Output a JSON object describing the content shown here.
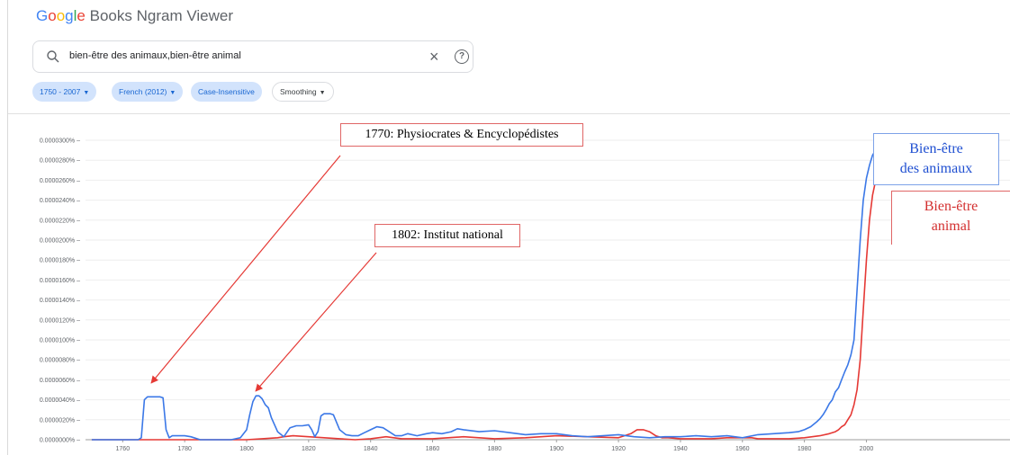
{
  "app": {
    "logo": "Google",
    "title": "Books Ngram Viewer"
  },
  "search": {
    "value": "bien-être des animaux,bien-être animal",
    "clear_icon": "close-icon",
    "help_icon": "help-circle-icon"
  },
  "filters": {
    "years": "1750 - 2007",
    "corpus": "French (2012)",
    "case": "Case-Insensitive",
    "smoothing": "Smoothing"
  },
  "colors": {
    "blue": "#3b78e7",
    "red": "#e53935",
    "chip_bg": "#d2e3fc",
    "chip_text": "#1967d2"
  },
  "annotations": [
    {
      "text": "1770: Physiocrates & Encyclopédistes"
    },
    {
      "text": "1802: Institut national"
    }
  ],
  "labels": {
    "blue": [
      "Bien-être",
      "des animaux"
    ],
    "red": [
      "Bien-être",
      "animal"
    ]
  },
  "chart_data": {
    "type": "line",
    "xlim": [
      1748,
      2008
    ],
    "ylim": [
      0,
      3e-05
    ],
    "y_ticks": [
      "0.0000000%",
      "0.0000020%",
      "0.0000040%",
      "0.0000060%",
      "0.0000080%",
      "0.0000100%",
      "0.0000120%",
      "0.0000140%",
      "0.0000160%",
      "0.0000180%",
      "0.0000200%",
      "0.0000220%",
      "0.0000240%",
      "0.0000260%",
      "0.0000280%",
      "0.0000300%"
    ],
    "x_ticks": [
      "1760",
      "1780",
      "1800",
      "1820",
      "1840",
      "1860",
      "1880",
      "1900",
      "1920",
      "1940",
      "1960",
      "1980",
      "2000"
    ],
    "grid": true,
    "series": [
      {
        "name": "bien-être des animaux",
        "color": "#3b78e7",
        "x": [
          1750,
          1765,
          1766,
          1767,
          1768,
          1769,
          1770,
          1771,
          1772,
          1773,
          1774,
          1775,
          1776,
          1778,
          1780,
          1782,
          1785,
          1790,
          1795,
          1798,
          1800,
          1801,
          1802,
          1803,
          1804,
          1805,
          1806,
          1807,
          1808,
          1810,
          1812,
          1814,
          1816,
          1818,
          1820,
          1821,
          1822,
          1823,
          1824,
          1825,
          1826,
          1827,
          1828,
          1830,
          1832,
          1834,
          1836,
          1838,
          1840,
          1842,
          1844,
          1846,
          1848,
          1850,
          1852,
          1855,
          1858,
          1860,
          1863,
          1866,
          1868,
          1870,
          1875,
          1880,
          1885,
          1890,
          1895,
          1900,
          1905,
          1910,
          1915,
          1920,
          1925,
          1930,
          1935,
          1940,
          1945,
          1950,
          1955,
          1960,
          1965,
          1970,
          1975,
          1978,
          1980,
          1982,
          1984,
          1985,
          1986,
          1987,
          1988,
          1989,
          1990,
          1991,
          1992,
          1993,
          1994,
          1995,
          1996,
          1997,
          1998,
          1999,
          2000,
          2001,
          2002,
          2003,
          2004,
          2005,
          2006,
          2007
        ],
        "values": [
          0,
          0,
          2e-07,
          4e-06,
          4.3e-06,
          4.3e-06,
          4.3e-06,
          4.3e-06,
          4.3e-06,
          4.2e-06,
          1e-06,
          2e-07,
          4e-07,
          4e-07,
          4e-07,
          3e-07,
          0,
          0,
          0,
          2e-07,
          1e-06,
          2.5e-06,
          3.8e-06,
          4.4e-06,
          4.4e-06,
          4.1e-06,
          3.5e-06,
          3.2e-06,
          2.2e-06,
          8e-07,
          3e-07,
          1.2e-06,
          1.4e-06,
          1.4e-06,
          1.5e-06,
          1e-06,
          3e-07,
          8e-07,
          2.4e-06,
          2.6e-06,
          2.6e-06,
          2.6e-06,
          2.5e-06,
          1e-06,
          5e-07,
          4e-07,
          4e-07,
          7e-07,
          1e-06,
          1.3e-06,
          1.2e-06,
          8e-07,
          4e-07,
          4e-07,
          6e-07,
          4e-07,
          6e-07,
          7e-07,
          6e-07,
          8e-07,
          1.1e-06,
          1e-06,
          8e-07,
          9e-07,
          7e-07,
          5e-07,
          6e-07,
          6e-07,
          4e-07,
          3e-07,
          4e-07,
          5e-07,
          3e-07,
          2e-07,
          3e-07,
          3e-07,
          4e-07,
          3e-07,
          4e-07,
          2e-07,
          5e-07,
          6e-07,
          7e-07,
          8e-07,
          1e-06,
          1.3e-06,
          1.8e-06,
          2.1e-06,
          2.5e-06,
          3e-06,
          3.6e-06,
          4e-06,
          4.8e-06,
          5.2e-06,
          6e-06,
          6.8e-06,
          7.5e-06,
          8.5e-06,
          1e-05,
          1.5e-05,
          2e-05,
          2.4e-05,
          2.62e-05,
          2.75e-05,
          2.85e-05,
          2.9e-05,
          2.92e-05,
          2.88e-05,
          2.85e-05,
          2.83e-05
        ]
      },
      {
        "name": "bien-être animal",
        "color": "#e53935",
        "x": [
          1750,
          1770,
          1790,
          1800,
          1805,
          1810,
          1812,
          1815,
          1820,
          1825,
          1830,
          1835,
          1840,
          1845,
          1850,
          1860,
          1870,
          1880,
          1890,
          1900,
          1910,
          1920,
          1924,
          1926,
          1928,
          1930,
          1932,
          1934,
          1936,
          1940,
          1945,
          1950,
          1955,
          1960,
          1963,
          1965,
          1970,
          1975,
          1980,
          1985,
          1988,
          1990,
          1991,
          1992,
          1993,
          1994,
          1995,
          1996,
          1997,
          1998,
          1999,
          2000,
          2001,
          2002,
          2003,
          2004,
          2005,
          2006,
          2007
        ],
        "values": [
          0,
          0,
          0,
          0,
          1e-07,
          2e-07,
          3e-07,
          4e-07,
          3e-07,
          2e-07,
          1e-07,
          0,
          1e-07,
          3e-07,
          1e-07,
          1e-07,
          3e-07,
          1e-07,
          2e-07,
          4e-07,
          3e-07,
          2e-07,
          6e-07,
          1e-06,
          1e-06,
          8e-07,
          4e-07,
          2e-07,
          2e-07,
          1e-07,
          1e-07,
          1e-07,
          2e-07,
          2e-07,
          2e-07,
          1e-07,
          1e-07,
          1e-07,
          2e-07,
          4e-07,
          6e-07,
          8e-07,
          1e-06,
          1.3e-06,
          1.5e-06,
          2e-06,
          2.5e-06,
          3.5e-06,
          5e-06,
          8e-06,
          1.3e-05,
          1.8e-05,
          2.2e-05,
          2.45e-05,
          2.6e-05,
          2.68e-05,
          2.72e-05,
          2.76e-05,
          2.8e-05
        ]
      }
    ]
  }
}
